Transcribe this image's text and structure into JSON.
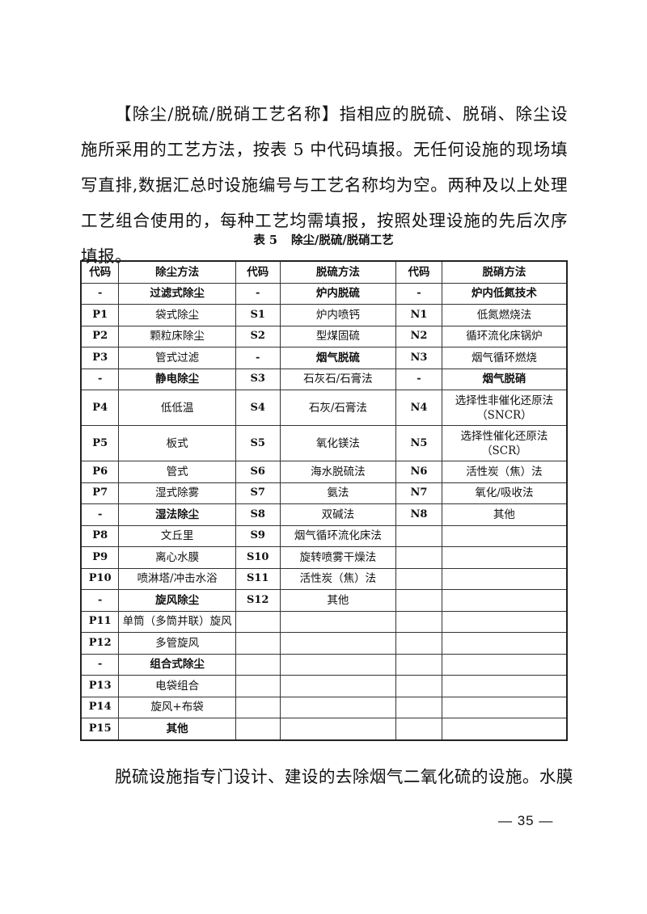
{
  "paragraph1": "【除尘/脱硫/脱硝工艺名称】指相应的脱硫、脱硝、除尘设施所采用的工艺方法，按表 5 中代码填报。无任何设施的现场填写直排,数据汇总时设施编号与工艺名称均为空。两种及以上处理工艺组合使用的，每种工艺均需填报，按照处理设施的先后次序填报。",
  "caption": {
    "number": "表 5",
    "title": "除尘/脱硫/脱硝工艺"
  },
  "table": {
    "headers": [
      "代码",
      "除尘方法",
      "代码",
      "脱硫方法",
      "代码",
      "脱硝方法"
    ],
    "rows": [
      {
        "cells": [
          "-",
          "过滤式除尘",
          "-",
          "炉内脱硫",
          "-",
          "炉内低氮技术"
        ],
        "bold": [
          1,
          3,
          5
        ]
      },
      {
        "cells": [
          "P1",
          "袋式除尘",
          "S1",
          "炉内喷钙",
          "N1",
          "低氮燃烧法"
        ],
        "bold": []
      },
      {
        "cells": [
          "P2",
          "颗粒床除尘",
          "S2",
          "型煤固硫",
          "N2",
          "循环流化床锅炉"
        ],
        "bold": []
      },
      {
        "cells": [
          "P3",
          "管式过滤",
          "-",
          "烟气脱硫",
          "N3",
          "烟气循环燃烧"
        ],
        "bold": [
          3
        ]
      },
      {
        "cells": [
          "-",
          "静电除尘",
          "S3",
          "石灰石/石膏法",
          "-",
          "烟气脱硝"
        ],
        "bold": [
          1,
          5
        ]
      },
      {
        "cells": [
          "P4",
          "低低温",
          "S4",
          "石灰/石膏法",
          "N4",
          "选择性非催化还原法\n（SNCR）"
        ],
        "bold": [],
        "tall": true
      },
      {
        "cells": [
          "P5",
          "板式",
          "S5",
          "氧化镁法",
          "N5",
          "选择性催化还原法\n（SCR）"
        ],
        "bold": [],
        "tall": true
      },
      {
        "cells": [
          "P6",
          "管式",
          "S6",
          "海水脱硫法",
          "N6",
          "活性炭（焦）法"
        ],
        "bold": []
      },
      {
        "cells": [
          "P7",
          "湿式除雾",
          "S7",
          "氨法",
          "N7",
          "氧化/吸收法"
        ],
        "bold": []
      },
      {
        "cells": [
          "-",
          "湿法除尘",
          "S8",
          "双碱法",
          "N8",
          "其他"
        ],
        "bold": [
          1
        ]
      },
      {
        "cells": [
          "P8",
          "文丘里",
          "S9",
          "烟气循环流化床法",
          "",
          ""
        ],
        "bold": []
      },
      {
        "cells": [
          "P9",
          "离心水膜",
          "S10",
          "旋转喷雾干燥法",
          "",
          ""
        ],
        "bold": []
      },
      {
        "cells": [
          "P10",
          "喷淋塔/冲击水浴",
          "S11",
          "活性炭（焦）法",
          "",
          ""
        ],
        "bold": []
      },
      {
        "cells": [
          "-",
          "旋风除尘",
          "S12",
          "其他",
          "",
          ""
        ],
        "bold": [
          1
        ]
      },
      {
        "cells": [
          "P11",
          "单筒（多筒并联）旋风",
          "",
          "",
          "",
          ""
        ],
        "bold": []
      },
      {
        "cells": [
          "P12",
          "多管旋风",
          "",
          "",
          "",
          ""
        ],
        "bold": []
      },
      {
        "cells": [
          "-",
          "组合式除尘",
          "",
          "",
          "",
          ""
        ],
        "bold": [
          1
        ]
      },
      {
        "cells": [
          "P13",
          "电袋组合",
          "",
          "",
          "",
          ""
        ],
        "bold": []
      },
      {
        "cells": [
          "P14",
          "旋风+布袋",
          "",
          "",
          "",
          ""
        ],
        "bold": []
      },
      {
        "cells": [
          "P15",
          "其他",
          "",
          "",
          "",
          ""
        ],
        "bold": [
          1
        ]
      }
    ]
  },
  "paragraph2": "脱硫设施指专门设计、建设的去除烟气二氧化硫的设施。水膜",
  "page_number": "— 35 —"
}
